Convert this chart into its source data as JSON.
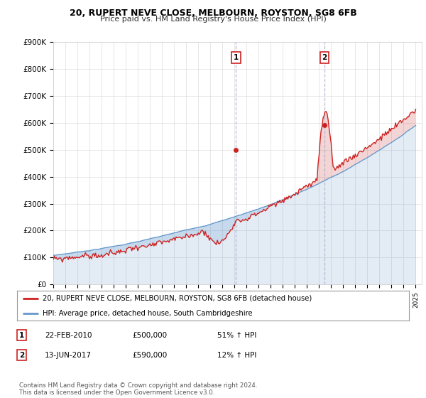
{
  "title1": "20, RUPERT NEVE CLOSE, MELBOURN, ROYSTON, SG8 6FB",
  "title2": "Price paid vs. HM Land Registry's House Price Index (HPI)",
  "ylim": [
    0,
    900000
  ],
  "yticks": [
    0,
    100000,
    200000,
    300000,
    400000,
    500000,
    600000,
    700000,
    800000,
    900000
  ],
  "ytick_labels": [
    "£0",
    "£100K",
    "£200K",
    "£300K",
    "£400K",
    "£500K",
    "£600K",
    "£700K",
    "£800K",
    "£900K"
  ],
  "hpi_color": "#6699cc",
  "price_color": "#cc2222",
  "sale1_x": 2010.13,
  "sale1_y": 500000,
  "sale1_label": "1",
  "sale2_x": 2017.45,
  "sale2_y": 590000,
  "sale2_label": "2",
  "legend_line1": "20, RUPERT NEVE CLOSE, MELBOURN, ROYSTON, SG8 6FB (detached house)",
  "legend_line2": "HPI: Average price, detached house, South Cambridgeshire",
  "table_row1": [
    "1",
    "22-FEB-2010",
    "£500,000",
    "51% ↑ HPI"
  ],
  "table_row2": [
    "2",
    "13-JUN-2017",
    "£590,000",
    "12% ↑ HPI"
  ],
  "footnote": "Contains HM Land Registry data © Crown copyright and database right 2024.\nThis data is licensed under the Open Government Licence v3.0.",
  "xlim_start": 1995,
  "xlim_end": 2025.5
}
